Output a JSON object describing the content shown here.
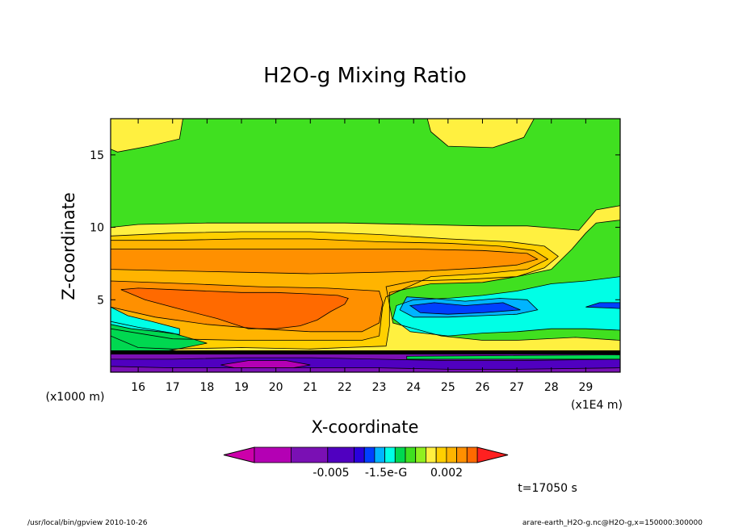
{
  "chart_data": {
    "type": "heatmap",
    "title": "H2O-g Mixing Ratio",
    "xlabel": "X-coordinate",
    "ylabel": "Z-coordinate",
    "x_unit": "(x1E4 m)",
    "y_unit": "(x1000 m)",
    "xlim": [
      15.2,
      30.0
    ],
    "ylim": [
      0.0,
      17.5
    ],
    "x_ticks": [
      16,
      17,
      18,
      19,
      20,
      21,
      22,
      23,
      24,
      25,
      26,
      27,
      28,
      29
    ],
    "y_ticks": [
      5,
      10,
      15
    ],
    "colorbar": {
      "colors": [
        "#cc00aa",
        "#b400b4",
        "#7a10b4",
        "#5000c0",
        "#2a00dc",
        "#0040ff",
        "#00b4ff",
        "#00ffe6",
        "#00d850",
        "#40e020",
        "#90f020",
        "#fff040",
        "#ffd000",
        "#ffb400",
        "#ff9000",
        "#ff6a00",
        "#ff2020"
      ],
      "tick_labels": [
        "-0.005",
        "-1.5e-G",
        "0.002"
      ]
    },
    "regions": [
      {
        "color": "#40e020",
        "points": [
          [
            15.2,
            1.3
          ],
          [
            30.0,
            1.3
          ],
          [
            30.0,
            17.5
          ],
          [
            15.2,
            17.5
          ]
        ]
      },
      {
        "color": "#fff040",
        "points": [
          [
            15.2,
            15.4
          ],
          [
            15.4,
            15.2
          ],
          [
            16.3,
            15.6
          ],
          [
            17.2,
            16.1
          ],
          [
            17.3,
            17.5
          ],
          [
            15.2,
            17.5
          ]
        ]
      },
      {
        "color": "#fff040",
        "points": [
          [
            24.4,
            17.5
          ],
          [
            24.5,
            16.6
          ],
          [
            25.0,
            15.6
          ],
          [
            26.3,
            15.5
          ],
          [
            27.2,
            16.2
          ],
          [
            27.5,
            17.5
          ]
        ]
      },
      {
        "color": "#fff040",
        "points": [
          [
            15.2,
            1.3
          ],
          [
            30.0,
            1.3
          ],
          [
            30.0,
            2.2
          ],
          [
            28.7,
            2.4
          ],
          [
            27.0,
            2.2
          ],
          [
            26.0,
            2.2
          ],
          [
            24.8,
            2.5
          ],
          [
            23.4,
            3.4
          ],
          [
            23.2,
            5.9
          ],
          [
            24.0,
            6.3
          ],
          [
            25.5,
            6.4
          ],
          [
            27.0,
            6.6
          ],
          [
            28.0,
            7.1
          ],
          [
            28.6,
            8.5
          ],
          [
            29.0,
            9.6
          ],
          [
            29.3,
            10.3
          ],
          [
            30.0,
            10.5
          ],
          [
            30.0,
            11.5
          ],
          [
            29.3,
            11.2
          ],
          [
            28.8,
            9.8
          ],
          [
            28.3,
            9.9
          ],
          [
            27.3,
            10.1
          ],
          [
            26.0,
            10.1
          ],
          [
            24.0,
            10.2
          ],
          [
            22.0,
            10.3
          ],
          [
            20.0,
            10.3
          ],
          [
            18.0,
            10.3
          ],
          [
            16.0,
            10.2
          ],
          [
            15.2,
            10.0
          ]
        ]
      },
      {
        "color": "#ffd000",
        "points": [
          [
            15.2,
            2.5
          ],
          [
            16.0,
            1.7
          ],
          [
            17.0,
            1.6
          ],
          [
            19.0,
            1.7
          ],
          [
            21.0,
            1.6
          ],
          [
            22.0,
            1.7
          ],
          [
            23.2,
            1.8
          ],
          [
            23.3,
            3.2
          ],
          [
            23.3,
            5.5
          ],
          [
            24.5,
            6.1
          ],
          [
            26.0,
            6.2
          ],
          [
            27.0,
            6.6
          ],
          [
            27.8,
            7.2
          ],
          [
            28.2,
            8.0
          ],
          [
            27.8,
            8.7
          ],
          [
            26.8,
            9.0
          ],
          [
            25.0,
            9.2
          ],
          [
            23.0,
            9.5
          ],
          [
            21.0,
            9.7
          ],
          [
            19.0,
            9.7
          ],
          [
            17.0,
            9.6
          ],
          [
            15.2,
            9.4
          ]
        ]
      },
      {
        "color": "#ffb400",
        "points": [
          [
            15.2,
            3.0
          ],
          [
            17.0,
            2.3
          ],
          [
            19.0,
            2.2
          ],
          [
            21.0,
            2.2
          ],
          [
            22.5,
            2.2
          ],
          [
            23.0,
            2.5
          ],
          [
            23.1,
            4.5
          ],
          [
            23.2,
            5.2
          ],
          [
            24.5,
            6.6
          ],
          [
            26.0,
            6.8
          ],
          [
            27.3,
            7.1
          ],
          [
            27.9,
            7.8
          ],
          [
            27.5,
            8.4
          ],
          [
            26.5,
            8.7
          ],
          [
            25.0,
            8.9
          ],
          [
            23.0,
            9.0
          ],
          [
            21.0,
            9.2
          ],
          [
            19.0,
            9.2
          ],
          [
            17.0,
            9.1
          ],
          [
            15.2,
            9.1
          ]
        ]
      },
      {
        "color": "#ff9000",
        "points": [
          [
            15.2,
            7.1
          ],
          [
            17.0,
            7.0
          ],
          [
            19.0,
            6.9
          ],
          [
            21.0,
            6.8
          ],
          [
            23.0,
            6.9
          ],
          [
            24.5,
            7.0
          ],
          [
            26.0,
            7.2
          ],
          [
            27.0,
            7.4
          ],
          [
            27.6,
            7.8
          ],
          [
            27.3,
            8.2
          ],
          [
            26.0,
            8.4
          ],
          [
            24.0,
            8.5
          ],
          [
            22.0,
            8.5
          ],
          [
            20.0,
            8.5
          ],
          [
            18.0,
            8.5
          ],
          [
            15.2,
            8.5
          ]
        ]
      },
      {
        "color": "#ff9000",
        "points": [
          [
            15.2,
            4.5
          ],
          [
            16.5,
            3.8
          ],
          [
            18.0,
            3.3
          ],
          [
            19.5,
            3.0
          ],
          [
            21.0,
            2.8
          ],
          [
            22.5,
            2.8
          ],
          [
            23.0,
            3.4
          ],
          [
            23.1,
            4.8
          ],
          [
            23.0,
            5.6
          ],
          [
            21.5,
            5.8
          ],
          [
            19.5,
            5.9
          ],
          [
            17.5,
            6.1
          ],
          [
            15.2,
            6.3
          ]
        ]
      },
      {
        "color": "#ff6a00",
        "points": [
          [
            15.5,
            5.7
          ],
          [
            16.2,
            5.0
          ],
          [
            17.3,
            4.3
          ],
          [
            18.3,
            3.7
          ],
          [
            19.2,
            3.0
          ],
          [
            20.0,
            3.0
          ],
          [
            20.7,
            3.2
          ],
          [
            21.2,
            3.6
          ],
          [
            21.6,
            4.2
          ],
          [
            22.0,
            4.7
          ],
          [
            22.1,
            5.1
          ],
          [
            21.8,
            5.3
          ],
          [
            21.0,
            5.4
          ],
          [
            20.0,
            5.5
          ],
          [
            19.0,
            5.5
          ],
          [
            18.0,
            5.6
          ],
          [
            17.0,
            5.7
          ],
          [
            16.0,
            5.8
          ]
        ]
      },
      {
        "color": "#00d850",
        "points": [
          [
            15.2,
            1.3
          ],
          [
            16.5,
            1.3
          ],
          [
            18.0,
            2.0
          ],
          [
            17.0,
            2.7
          ],
          [
            16.0,
            3.1
          ],
          [
            15.2,
            3.5
          ]
        ]
      },
      {
        "color": "#00ffe6",
        "points": [
          [
            15.2,
            3.3
          ],
          [
            15.8,
            3.0
          ],
          [
            16.6,
            2.8
          ],
          [
            17.2,
            2.6
          ],
          [
            17.2,
            3.0
          ],
          [
            16.4,
            3.5
          ],
          [
            15.7,
            3.9
          ],
          [
            15.2,
            4.5
          ]
        ]
      },
      {
        "color": "#00ffe6",
        "points": [
          [
            23.4,
            3.7
          ],
          [
            23.9,
            2.8
          ],
          [
            25.0,
            2.5
          ],
          [
            26.0,
            2.7
          ],
          [
            27.0,
            2.8
          ],
          [
            28.0,
            3.0
          ],
          [
            29.0,
            3.0
          ],
          [
            30.0,
            2.9
          ],
          [
            30.0,
            6.6
          ],
          [
            29.0,
            6.3
          ],
          [
            28.0,
            6.1
          ],
          [
            27.0,
            5.6
          ],
          [
            26.0,
            5.3
          ],
          [
            25.0,
            5.1
          ],
          [
            24.0,
            5.0
          ],
          [
            23.5,
            4.6
          ]
        ]
      },
      {
        "color": "#00b4ff",
        "points": [
          [
            23.6,
            4.3
          ],
          [
            24.0,
            3.8
          ],
          [
            25.0,
            3.8
          ],
          [
            26.0,
            3.9
          ],
          [
            27.0,
            4.0
          ],
          [
            27.6,
            4.3
          ],
          [
            27.3,
            5.0
          ],
          [
            26.5,
            5.1
          ],
          [
            25.5,
            4.9
          ],
          [
            24.5,
            5.1
          ],
          [
            23.8,
            5.2
          ]
        ]
      },
      {
        "color": "#0040ff",
        "points": [
          [
            23.9,
            4.6
          ],
          [
            24.2,
            4.1
          ],
          [
            25.0,
            4.0
          ],
          [
            26.0,
            4.1
          ],
          [
            27.1,
            4.3
          ],
          [
            26.6,
            4.8
          ],
          [
            25.5,
            4.6
          ],
          [
            24.6,
            4.8
          ]
        ]
      },
      {
        "color": "#0040ff",
        "points": [
          [
            29.0,
            4.5
          ],
          [
            30.0,
            4.4
          ],
          [
            30.0,
            4.8
          ],
          [
            29.4,
            4.8
          ]
        ]
      },
      {
        "color": "#7a10b4",
        "points": [
          [
            15.2,
            0.0
          ],
          [
            30.0,
            0.0
          ],
          [
            30.0,
            1.4
          ],
          [
            15.2,
            1.4
          ]
        ]
      },
      {
        "color": "#5000c0",
        "points": [
          [
            15.2,
            0.4
          ],
          [
            17.0,
            0.3
          ],
          [
            19.0,
            0.3
          ],
          [
            20.5,
            0.3
          ],
          [
            23.0,
            0.3
          ],
          [
            25.0,
            0.2
          ],
          [
            27.0,
            0.2
          ],
          [
            30.0,
            0.3
          ],
          [
            30.0,
            0.9
          ],
          [
            27.0,
            0.8
          ],
          [
            25.0,
            0.8
          ],
          [
            23.0,
            0.9
          ],
          [
            21.0,
            1.0
          ],
          [
            19.0,
            1.0
          ],
          [
            17.0,
            0.9
          ],
          [
            15.2,
            0.9
          ]
        ]
      },
      {
        "color": "#b400b4",
        "points": [
          [
            18.4,
            0.5
          ],
          [
            18.8,
            0.3
          ],
          [
            20.5,
            0.3
          ],
          [
            21.0,
            0.5
          ],
          [
            20.3,
            0.8
          ],
          [
            19.2,
            0.8
          ]
        ]
      },
      {
        "color": "#00d850",
        "points": [
          [
            23.8,
            0.9
          ],
          [
            30.0,
            0.9
          ],
          [
            30.0,
            1.2
          ],
          [
            23.8,
            1.1
          ]
        ]
      }
    ]
  },
  "footer": {
    "time_label": "t=17050 s",
    "left_info": "/usr/local/bin/gpview  2010-10-26",
    "right_info": "arare-earth_H2O-g.nc@H2O-g,x=150000:300000"
  }
}
